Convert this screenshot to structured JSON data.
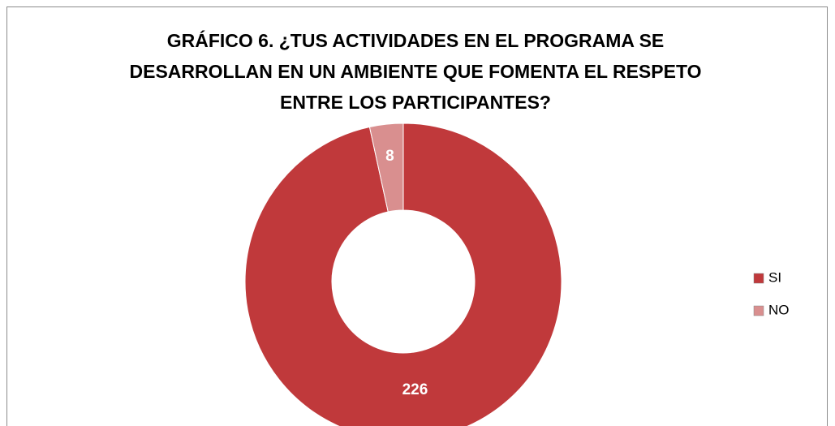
{
  "chart_data": {
    "type": "donut",
    "title": [
      "GRÁFICO 6. ¿TUS ACTIVIDADES EN EL PROGRAMA SE",
      "DESARROLLAN EN UN AMBIENTE QUE FOMENTA EL RESPETO",
      "ENTRE LOS PARTICIPANTES?"
    ],
    "categories": [
      "SI",
      "NO"
    ],
    "values": [
      226,
      8
    ],
    "colors": [
      "#c0393b",
      "#d98f8f"
    ],
    "legend": "right"
  }
}
